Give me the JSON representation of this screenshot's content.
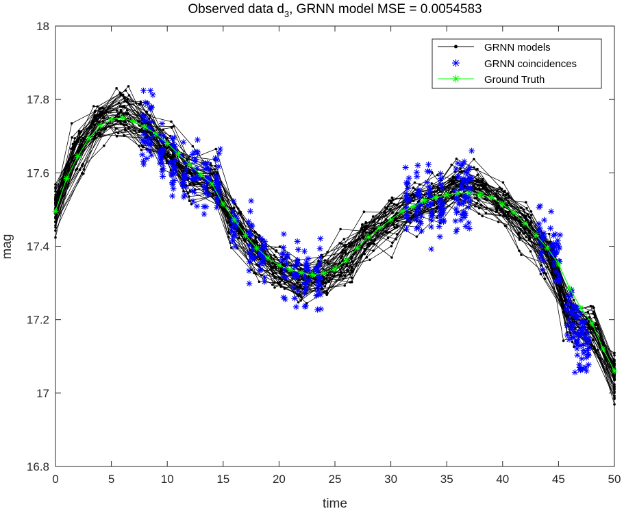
{
  "chart_data": {
    "type": "line",
    "title": "Observed data d",
    "title_subscript": "3",
    "title_suffix": ", GRNN model  MSE = 0.0054583",
    "xlabel": "time",
    "ylabel": "mag",
    "xlim": [
      0,
      50
    ],
    "ylim": [
      16.8,
      18
    ],
    "xticks": [
      "0",
      "5",
      "10",
      "15",
      "20",
      "25",
      "30",
      "35",
      "40",
      "45",
      "50"
    ],
    "yticks": [
      "16.8",
      "17",
      "17.2",
      "17.4",
      "17.6",
      "17.8",
      "18"
    ],
    "grid": false,
    "legend_position": "top-right",
    "legend": [
      "GRNN models",
      "GRNN coincidences",
      "Ground Truth"
    ],
    "colors": {
      "models": "#000000",
      "coincidences": "#0000ff",
      "ground_truth": "#00ff00"
    },
    "series": [
      {
        "name": "Ground Truth",
        "x": [
          0,
          1,
          2,
          3,
          4,
          5,
          6,
          7,
          8,
          9,
          10,
          11,
          12,
          13,
          14,
          15,
          16,
          17,
          18,
          19,
          20,
          21,
          22,
          23,
          24,
          25,
          26,
          27,
          28,
          29,
          30,
          31,
          32,
          33,
          34,
          35,
          36,
          37,
          38,
          39,
          40,
          41,
          42,
          43,
          44,
          45,
          46,
          47,
          48,
          49,
          50
        ],
        "y": [
          17.495,
          17.585,
          17.645,
          17.695,
          17.728,
          17.746,
          17.75,
          17.74,
          17.725,
          17.706,
          17.68,
          17.652,
          17.623,
          17.595,
          17.57,
          17.515,
          17.472,
          17.43,
          17.395,
          17.368,
          17.348,
          17.336,
          17.328,
          17.322,
          17.327,
          17.338,
          17.362,
          17.395,
          17.425,
          17.45,
          17.472,
          17.495,
          17.508,
          17.524,
          17.533,
          17.54,
          17.545,
          17.545,
          17.541,
          17.533,
          17.515,
          17.492,
          17.462,
          17.43,
          17.395,
          17.352,
          17.285,
          17.232,
          17.19,
          17.12,
          17.06
        ]
      },
      {
        "name": "GRNN models",
        "x": [
          0,
          2,
          4,
          6,
          8,
          10,
          12,
          14,
          16,
          18,
          20,
          22,
          24,
          26,
          28,
          30,
          32,
          34,
          36,
          38,
          40,
          42,
          44,
          46,
          48,
          50
        ],
        "y": [
          17.5,
          17.66,
          17.74,
          17.77,
          17.72,
          17.66,
          17.6,
          17.58,
          17.46,
          17.38,
          17.34,
          17.3,
          17.31,
          17.36,
          17.43,
          17.47,
          17.51,
          17.53,
          17.57,
          17.55,
          17.51,
          17.45,
          17.38,
          17.2,
          17.17,
          17.05
        ],
        "spread": 0.08,
        "count": 50
      },
      {
        "name": "GRNN coincidences",
        "x": [
          8,
          8.5,
          9.5,
          10.5,
          11.5,
          12.5,
          13.5,
          14.5,
          16,
          17.5,
          18.5,
          20.5,
          21.5,
          22.5,
          23.5,
          31.5,
          32.5,
          33.5,
          34.5,
          36,
          36.5,
          37,
          43.5,
          44.5,
          45,
          46,
          46.5,
          47,
          47.5
        ],
        "y": [
          17.71,
          17.73,
          17.68,
          17.63,
          17.6,
          17.6,
          17.59,
          17.57,
          17.45,
          17.38,
          17.36,
          17.34,
          17.32,
          17.32,
          17.32,
          17.51,
          17.51,
          17.52,
          17.52,
          17.53,
          17.55,
          17.55,
          17.42,
          17.4,
          17.36,
          17.22,
          17.18,
          17.15,
          17.12
        ],
        "spread": 0.17
      }
    ]
  }
}
